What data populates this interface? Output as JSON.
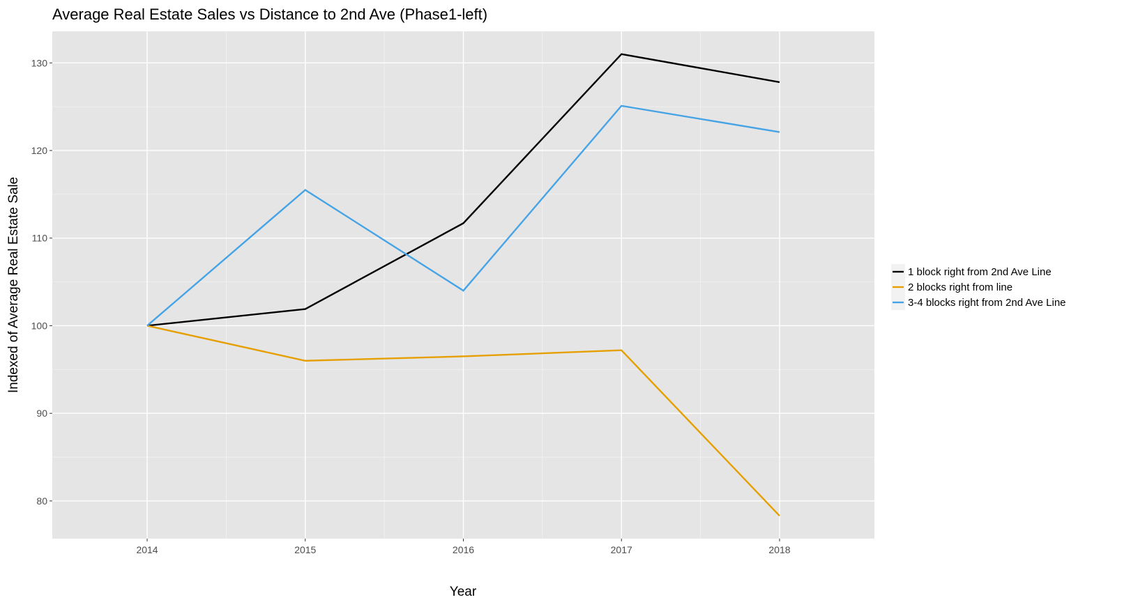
{
  "chart_data": {
    "type": "line",
    "title": "Average Real Estate Sales vs Distance to 2nd Ave (Phase1-left)",
    "xlabel": "Year",
    "ylabel": "Indexed of Average Real Estate Sale",
    "x": [
      2014,
      2015,
      2016,
      2017,
      2018
    ],
    "xlim": [
      2013.4,
      2018.6
    ],
    "ylim": [
      75.7,
      133.6
    ],
    "xticks": [
      "2014",
      "2015",
      "2016",
      "2017",
      "2018"
    ],
    "yticks": [
      "80",
      "90",
      "100",
      "110",
      "120",
      "130"
    ],
    "grid": true,
    "legend_position": "right",
    "background": "#e5e5e5",
    "series": [
      {
        "name": "1 block right from 2nd Ave Line",
        "color": "#000000",
        "values": [
          100,
          101.9,
          111.7,
          131.0,
          127.8
        ]
      },
      {
        "name": "2 blocks right from line",
        "color": "#e69f00",
        "values": [
          100,
          96.0,
          96.5,
          97.2,
          78.3
        ]
      },
      {
        "name": "3-4 blocks right from 2nd Ave Line",
        "color": "#46a3e6",
        "values": [
          100,
          115.5,
          104.0,
          125.1,
          122.1
        ]
      }
    ]
  }
}
